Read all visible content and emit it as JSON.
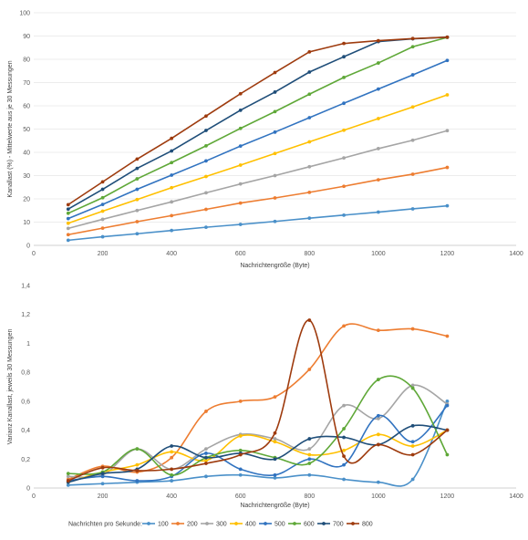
{
  "chart_data": [
    {
      "type": "line",
      "title": "",
      "xlabel": "Nachrichtengröße (Byte)",
      "ylabel": "Kanallast (%) - Mittelwerte aus je 30 Messungen",
      "xlim": [
        0,
        1400
      ],
      "ylim": [
        0,
        100
      ],
      "xticks": [
        0,
        200,
        400,
        600,
        800,
        1000,
        1200,
        1400
      ],
      "yticks": [
        0,
        10,
        20,
        30,
        40,
        50,
        60,
        70,
        80,
        90,
        100
      ],
      "ytick_labels": [
        "0",
        "10",
        "20",
        "30",
        "40",
        "50",
        "60",
        "70",
        "80",
        "90",
        "100"
      ],
      "grid": true,
      "smooth": false,
      "x": [
        100,
        200,
        300,
        400,
        500,
        600,
        700,
        800,
        900,
        1000,
        1100,
        1200
      ],
      "series": [
        {
          "name": "100",
          "color": "#4a90c9",
          "values": [
            2.2,
            3.7,
            5.0,
            6.4,
            7.8,
            9.0,
            10.3,
            11.7,
            13.0,
            14.3,
            15.7,
            17.0
          ]
        },
        {
          "name": "200",
          "color": "#ed7d31",
          "values": [
            4.6,
            7.4,
            10.2,
            12.8,
            15.5,
            18.2,
            20.4,
            22.8,
            25.4,
            28.2,
            30.6,
            33.5
          ]
        },
        {
          "name": "300",
          "color": "#a5a5a5",
          "values": [
            7.3,
            11.2,
            15.0,
            18.7,
            22.6,
            26.4,
            30.0,
            33.8,
            37.6,
            41.6,
            45.2,
            49.3
          ]
        },
        {
          "name": "400",
          "color": "#ffc000",
          "values": [
            9.5,
            14.7,
            19.7,
            24.8,
            29.6,
            34.5,
            39.5,
            44.5,
            49.5,
            54.5,
            59.5,
            64.7
          ]
        },
        {
          "name": "500",
          "color": "#3173c0",
          "values": [
            11.5,
            17.6,
            24.1,
            30.2,
            36.3,
            42.7,
            48.7,
            54.9,
            61.1,
            67.2,
            73.3,
            79.5
          ]
        },
        {
          "name": "600",
          "color": "#5fa838",
          "values": [
            13.8,
            20.5,
            28.6,
            35.6,
            42.8,
            50.3,
            57.5,
            65.0,
            72.2,
            78.4,
            85.4,
            89.4
          ]
        },
        {
          "name": "700",
          "color": "#1f4e79",
          "values": [
            15.6,
            24.1,
            33.1,
            40.6,
            49.4,
            58.1,
            65.9,
            74.5,
            81.1,
            87.6,
            88.8,
            89.5
          ]
        },
        {
          "name": "800",
          "color": "#9e3b0e",
          "values": [
            17.5,
            27.3,
            37.1,
            46.0,
            55.6,
            65.2,
            74.3,
            83.2,
            86.8,
            88.0,
            88.9,
            89.5
          ]
        }
      ]
    },
    {
      "type": "line",
      "title": "",
      "xlabel": "Nachrichtengröße (Byte)",
      "ylabel": "Varianz Kanallast, jeweils 30 Messungen",
      "xlim": [
        0,
        1400
      ],
      "ylim": [
        0,
        1.4
      ],
      "xticks": [
        0,
        200,
        400,
        600,
        800,
        1000,
        1200,
        1400
      ],
      "yticks": [
        0,
        0.2,
        0.4,
        0.6,
        0.8,
        1.0,
        1.2,
        1.4
      ],
      "ytick_labels": [
        "0",
        "0,2",
        "0,4",
        "0,6",
        "0,8",
        "1",
        "1,2",
        "1,4"
      ],
      "grid": false,
      "smooth": true,
      "x": [
        100,
        200,
        300,
        400,
        500,
        600,
        700,
        800,
        900,
        1000,
        1100,
        1200
      ],
      "series": [
        {
          "name": "100",
          "color": "#4a90c9",
          "values": [
            0.02,
            0.03,
            0.04,
            0.05,
            0.08,
            0.09,
            0.07,
            0.09,
            0.06,
            0.04,
            0.06,
            0.6
          ]
        },
        {
          "name": "200",
          "color": "#ed7d31",
          "values": [
            0.06,
            0.15,
            0.11,
            0.21,
            0.53,
            0.6,
            0.63,
            0.82,
            1.12,
            1.09,
            1.1,
            1.05
          ]
        },
        {
          "name": "300",
          "color": "#a5a5a5",
          "values": [
            0.08,
            0.09,
            0.27,
            0.13,
            0.27,
            0.37,
            0.34,
            0.27,
            0.57,
            0.48,
            0.71,
            0.58
          ]
        },
        {
          "name": "400",
          "color": "#ffc000",
          "values": [
            0.04,
            0.11,
            0.16,
            0.25,
            0.19,
            0.36,
            0.32,
            0.23,
            0.26,
            0.37,
            0.29,
            0.4
          ]
        },
        {
          "name": "500",
          "color": "#3173c0",
          "values": [
            0.05,
            0.08,
            0.05,
            0.08,
            0.24,
            0.13,
            0.09,
            0.2,
            0.16,
            0.5,
            0.32,
            0.57
          ]
        },
        {
          "name": "600",
          "color": "#5fa838",
          "values": [
            0.1,
            0.11,
            0.27,
            0.09,
            0.21,
            0.26,
            0.21,
            0.17,
            0.41,
            0.75,
            0.69,
            0.23
          ]
        },
        {
          "name": "700",
          "color": "#1f4e79",
          "values": [
            0.04,
            0.1,
            0.13,
            0.29,
            0.21,
            0.24,
            0.2,
            0.34,
            0.35,
            0.3,
            0.43,
            0.4
          ]
        },
        {
          "name": "800",
          "color": "#9e3b0e",
          "values": [
            0.05,
            0.14,
            0.12,
            0.13,
            0.17,
            0.23,
            0.38,
            1.16,
            0.22,
            0.3,
            0.23,
            0.4
          ]
        }
      ]
    }
  ],
  "legend": {
    "title": "Nachrichten pro Sekunde:",
    "position": "bottom",
    "entries": [
      "100",
      "200",
      "300",
      "400",
      "500",
      "600",
      "700",
      "800"
    ]
  }
}
